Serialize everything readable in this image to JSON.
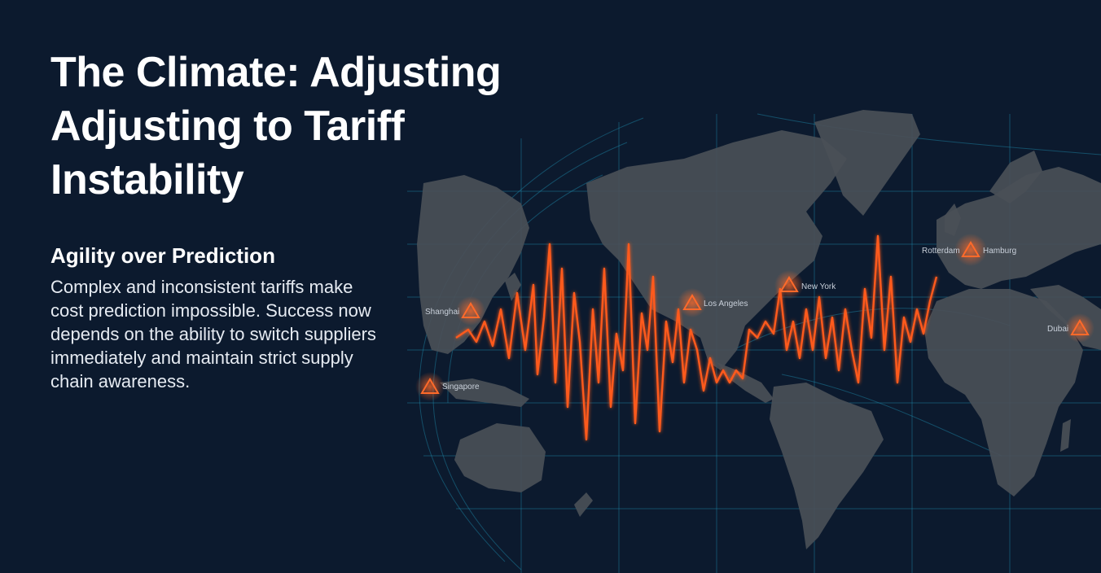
{
  "title_lines": [
    "The Climate: Adjusting",
    "Adjusting to Tariff",
    "Instability"
  ],
  "subtitle": "Agility over Prediction",
  "body": "Complex and inconsistent tariffs make cost prediction impossible. Success now depends on the ability to switch suppliers immediately and maintain strict supply chain awareness.",
  "map": {
    "hotspots": [
      {
        "label": "Shanghai",
        "icon": "warning-triangle-icon"
      },
      {
        "label": "Singapore",
        "icon": "warning-triangle-icon"
      },
      {
        "label": "Los Angeles",
        "icon": "warning-triangle-icon"
      },
      {
        "label": "New York",
        "icon": "warning-triangle-icon"
      },
      {
        "label": "Rotterdam",
        "icon": "warning-triangle-icon"
      },
      {
        "label": "Hamburg",
        "icon": "warning-triangle-icon"
      },
      {
        "label": "Dubai",
        "icon": "warning-triangle-icon"
      }
    ]
  },
  "colors": {
    "background": "#0c1a2e",
    "land": "#4a4f57",
    "grid": "#1f8fb0",
    "volatility_line": "#ff5a1f",
    "warning": "#ff6a2a"
  }
}
